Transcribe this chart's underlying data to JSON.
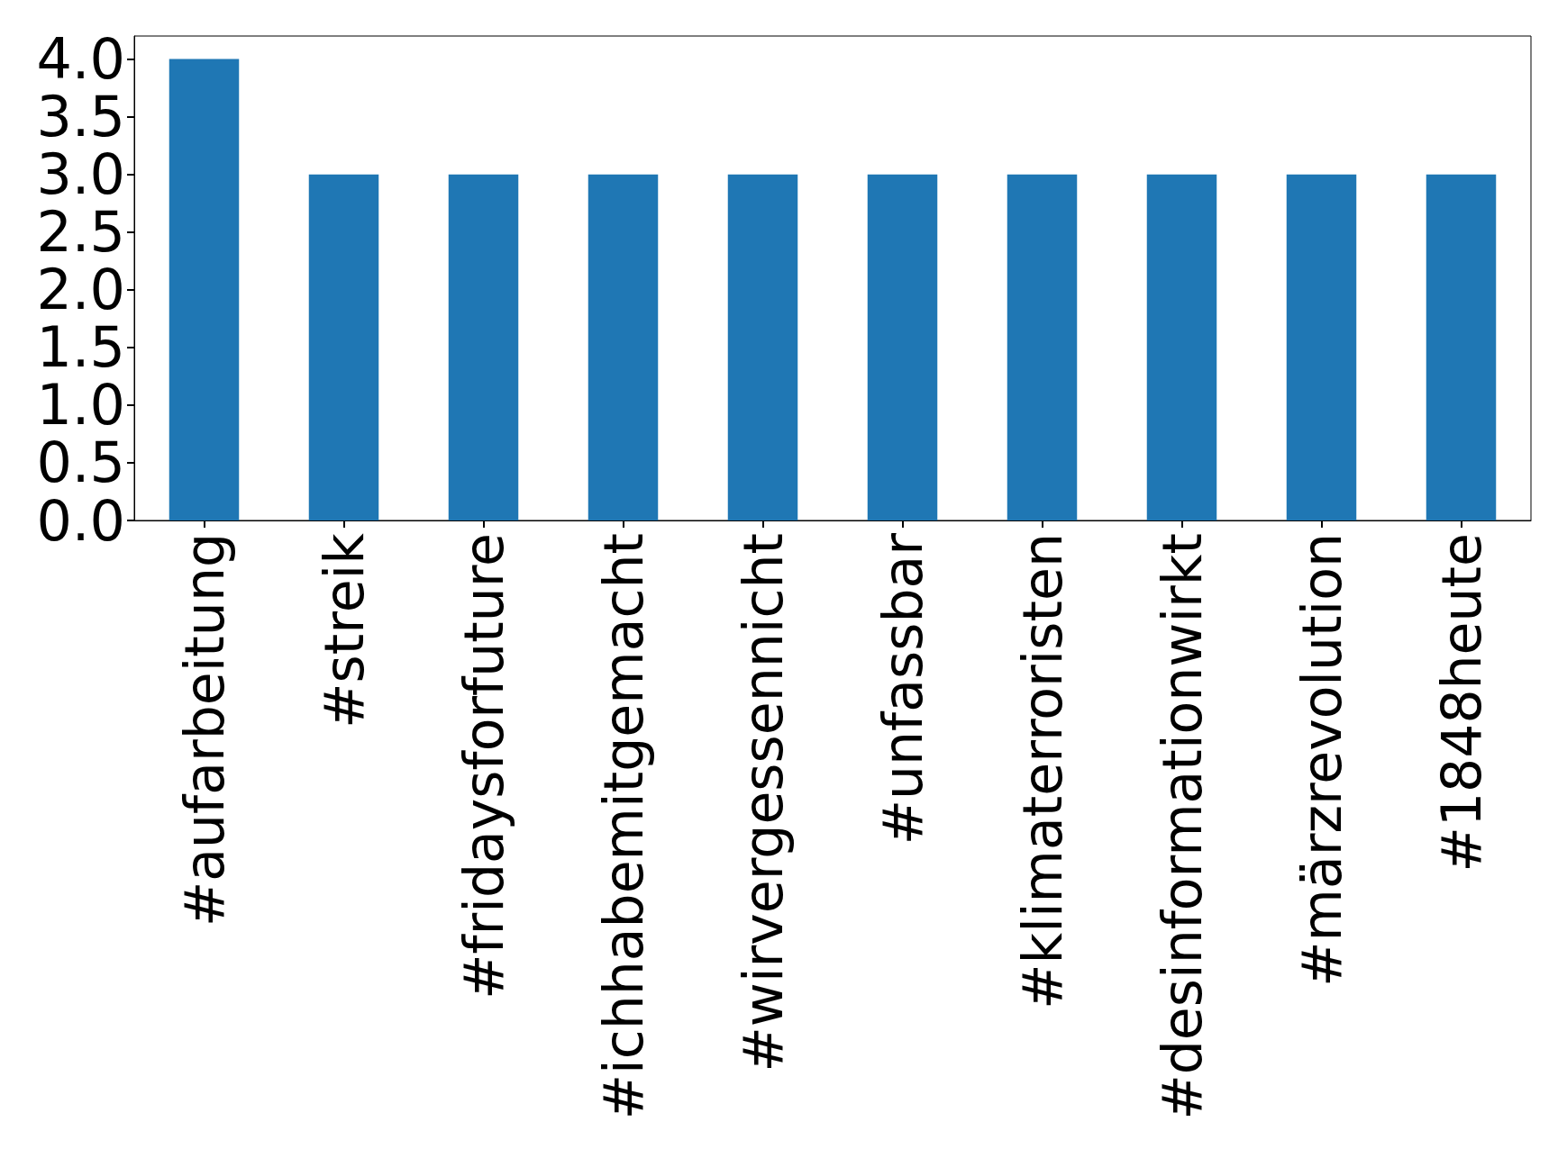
{
  "chart_data": {
    "type": "bar",
    "categories": [
      "#aufarbeitung",
      "#streik",
      "#fridaysforfuture",
      "#ichhabemitgemacht",
      "#wirvergessennicht",
      "#unfassbar",
      "#klimaterroristen",
      "#desinformationwirkt",
      "#märzrevolution",
      "#1848heute"
    ],
    "values": [
      4,
      3,
      3,
      3,
      3,
      3,
      3,
      3,
      3,
      3
    ],
    "color": "#1f77b4",
    "ylim": [
      0,
      4.2
    ],
    "yticks": [
      {
        "value": 0,
        "label": "0.0"
      },
      {
        "value": 0.5,
        "label": "0.5"
      },
      {
        "value": 1,
        "label": "1.0"
      },
      {
        "value": 1.5,
        "label": "1.5"
      },
      {
        "value": 2,
        "label": "2.0"
      },
      {
        "value": 2.5,
        "label": "2.5"
      },
      {
        "value": 3,
        "label": "3.0"
      },
      {
        "value": 3.5,
        "label": "3.5"
      },
      {
        "value": 4,
        "label": "4.0"
      }
    ],
    "grid": false
  }
}
